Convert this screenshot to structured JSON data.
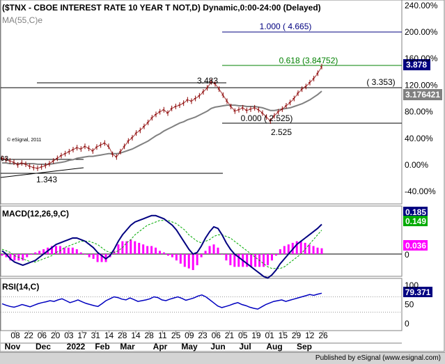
{
  "banner": {
    "text": "Published by eSignal (www.esignal.com)"
  },
  "chart_data": {
    "type": "line",
    "title": "($TNX - CBOE INTEREST RATE 10 YEAR T NOT,D) Dynamic,0:00-24:00 (Delayed)",
    "copyright": "© eSignal, 2011",
    "colors": {
      "price": "#8b0000",
      "ma": "#808080",
      "macd": "#000080",
      "signal": "#00aa00",
      "histogram": "#ff00ff",
      "rsi": "#0000c0",
      "fib_top": "#000080",
      "fib_mid": "#008000",
      "axis_text": "#000000"
    },
    "x_axis": {
      "days": [
        "08",
        "22",
        "06",
        "20",
        "03",
        "17",
        "31",
        "14",
        "28",
        "14",
        "28",
        "11",
        "25",
        "09",
        "23",
        "06",
        "21",
        "05",
        "19",
        "01",
        "15",
        "29",
        "12",
        "26"
      ],
      "months": [
        "Nov",
        "Dec",
        "2022",
        "Feb",
        "Mar",
        "Apr",
        "May",
        "Jun",
        "Jul",
        "Aug",
        "Sep"
      ]
    },
    "main_panel": {
      "legend": [
        "MA(55,C)e"
      ],
      "ylim": [
        -50,
        250
      ],
      "y_ticks": [
        "240.00%",
        "200.00%",
        "160.00%",
        "120.00%",
        "80.00%",
        "40.00%",
        "0.00%",
        "-40.00%"
      ],
      "value_badges": [
        {
          "label": "3.878",
          "style": "blue"
        },
        {
          "label": "3.176421",
          "style": "gray"
        }
      ],
      "fib_levels": [
        {
          "label": "1.000 ( 4.665)",
          "value": 200
        },
        {
          "label": "0.618 (3.84752)",
          "value": 144
        },
        {
          "label": "( 3.353)",
          "value": 117
        },
        {
          "label": "0.000 ( 2.525)",
          "value": 62
        }
      ],
      "annotations": [
        "3.483",
        "2.525",
        "1.343",
        "03"
      ],
      "series": [
        {
          "name": "$TNX",
          "values": [
            10,
            8,
            6,
            4,
            0,
            3,
            1,
            -2,
            -4,
            -5,
            -3,
            -1,
            2,
            6,
            10,
            14,
            17,
            20,
            23,
            26,
            24,
            28,
            25,
            21,
            27,
            30,
            33,
            28,
            16,
            12,
            20,
            28,
            36,
            41,
            48,
            52,
            58,
            64,
            71,
            76,
            80,
            83,
            78,
            85,
            88,
            90,
            93,
            98,
            96,
            100,
            104,
            110,
            116,
            125,
            122,
            114,
            105,
            96,
            88,
            81,
            83,
            86,
            82,
            84,
            86,
            83,
            78,
            72,
            66,
            74,
            80,
            84,
            89,
            94,
            100,
            108,
            114,
            118,
            124,
            130,
            138,
            148
          ]
        },
        {
          "name": "MA(55,C)e",
          "values": [
            3,
            3,
            2,
            2,
            2,
            2,
            2,
            2,
            2,
            1,
            1,
            1,
            1,
            2,
            3,
            4,
            5,
            7,
            8,
            10,
            11,
            12,
            13,
            13,
            14,
            15,
            16,
            17,
            17,
            17,
            18,
            20,
            22,
            24,
            27,
            30,
            33,
            36,
            40,
            44,
            47,
            51,
            54,
            57,
            60,
            63,
            65,
            68,
            70,
            72,
            75,
            78,
            81,
            85,
            87,
            88,
            89,
            90,
            90,
            90,
            89,
            89,
            88,
            88,
            88,
            87,
            86,
            84,
            82,
            82,
            83,
            84,
            85,
            86,
            88,
            90,
            92,
            95,
            98,
            102,
            106,
            111
          ]
        }
      ]
    },
    "macd_panel": {
      "label": "MACD(12,26,9,C)",
      "values": {
        "macd": "0.185",
        "signal": "0.149",
        "hist": "0.036"
      },
      "y_ticks": [
        "0"
      ],
      "series": [
        {
          "name": "MACD",
          "values": [
            0.02,
            0.0,
            -0.03,
            -0.05,
            -0.06,
            -0.07,
            -0.06,
            -0.05,
            -0.04,
            -0.02,
            0.0,
            0.02,
            0.04,
            0.06,
            0.07,
            0.08,
            0.09,
            0.1,
            0.1,
            0.09,
            0.08,
            0.06,
            0.04,
            0.01,
            -0.01,
            -0.03,
            -0.01,
            0.03,
            0.08,
            0.12,
            0.15,
            0.18,
            0.2,
            0.21,
            0.22,
            0.23,
            0.24,
            0.24,
            0.23,
            0.22,
            0.2,
            0.18,
            0.15,
            0.11,
            0.07,
            0.03,
            0.0,
            0.01,
            0.05,
            0.1,
            0.14,
            0.17,
            0.16,
            0.12,
            0.07,
            0.03,
            0.0,
            -0.02,
            -0.04,
            -0.06,
            -0.08,
            -0.1,
            -0.12,
            -0.14,
            -0.15,
            -0.13,
            -0.1,
            -0.06,
            -0.03,
            0.0,
            0.03,
            0.06,
            0.08,
            0.1,
            0.12,
            0.14,
            0.16,
            0.185
          ]
        },
        {
          "name": "Signal",
          "values": [
            0.03,
            0.02,
            0.01,
            -0.01,
            -0.02,
            -0.03,
            -0.04,
            -0.05,
            -0.05,
            -0.04,
            -0.03,
            -0.02,
            -0.01,
            0.01,
            0.02,
            0.04,
            0.05,
            0.06,
            0.07,
            0.08,
            0.08,
            0.08,
            0.07,
            0.06,
            0.04,
            0.02,
            0.01,
            0.01,
            0.02,
            0.04,
            0.07,
            0.09,
            0.12,
            0.14,
            0.16,
            0.18,
            0.19,
            0.2,
            0.21,
            0.21,
            0.21,
            0.2,
            0.19,
            0.17,
            0.15,
            0.12,
            0.1,
            0.08,
            0.07,
            0.08,
            0.09,
            0.11,
            0.12,
            0.12,
            0.11,
            0.1,
            0.08,
            0.06,
            0.04,
            0.02,
            0.0,
            -0.02,
            -0.04,
            -0.06,
            -0.08,
            -0.09,
            -0.09,
            -0.09,
            -0.08,
            -0.06,
            -0.04,
            -0.02,
            0.0,
            0.03,
            0.06,
            0.09,
            0.12,
            0.149
          ]
        },
        {
          "name": "Histogram",
          "values": [
            -0.01,
            -0.02,
            -0.04,
            -0.04,
            -0.04,
            -0.04,
            -0.02,
            0.0,
            0.01,
            0.02,
            0.03,
            0.04,
            0.05,
            0.05,
            0.05,
            0.04,
            0.04,
            0.04,
            0.03,
            0.01,
            0.0,
            -0.02,
            -0.03,
            -0.05,
            -0.05,
            -0.05,
            -0.02,
            0.02,
            0.06,
            0.08,
            0.08,
            0.09,
            0.08,
            0.07,
            0.06,
            0.05,
            0.05,
            0.04,
            0.02,
            0.01,
            -0.01,
            -0.02,
            -0.04,
            -0.06,
            -0.08,
            -0.09,
            -0.1,
            -0.07,
            -0.02,
            0.02,
            0.05,
            0.06,
            0.04,
            0.0,
            -0.04,
            -0.07,
            -0.08,
            -0.08,
            -0.08,
            -0.08,
            -0.08,
            -0.08,
            -0.08,
            -0.08,
            -0.07,
            -0.04,
            -0.01,
            0.03,
            0.05,
            0.06,
            0.07,
            0.08,
            0.08,
            0.07,
            0.06,
            0.05,
            0.04,
            0.036
          ]
        }
      ]
    },
    "rsi_panel": {
      "label": "RSI(14,C)",
      "value": "79.371",
      "y_ticks": [
        "100",
        "50",
        "0"
      ],
      "series": [
        {
          "name": "RSI",
          "values": [
            52,
            48,
            45,
            43,
            46,
            50,
            47,
            44,
            48,
            52,
            55,
            57,
            60,
            58,
            62,
            65,
            60,
            55,
            58,
            62,
            57,
            53,
            50,
            47,
            45,
            52,
            60,
            65,
            70,
            68,
            64,
            62,
            67,
            63,
            58,
            60,
            62,
            65,
            70,
            68,
            62,
            60,
            64,
            67,
            70,
            66,
            61,
            64,
            67,
            72,
            75,
            70,
            62,
            54,
            46,
            42,
            45,
            48,
            52,
            55,
            50,
            47,
            43,
            40,
            38,
            44,
            50,
            54,
            58,
            60,
            62,
            58,
            61,
            64,
            67,
            70,
            73,
            76,
            74,
            77,
            79.371
          ]
        }
      ]
    }
  }
}
